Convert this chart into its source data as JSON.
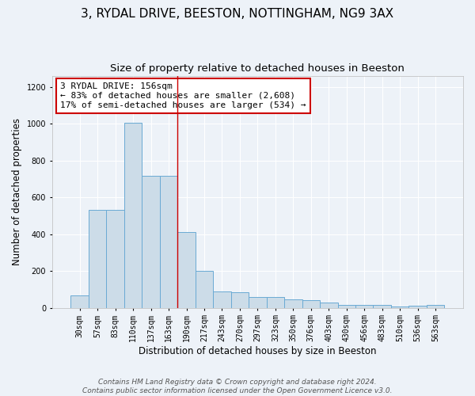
{
  "title": "3, RYDAL DRIVE, BEESTON, NOTTINGHAM, NG9 3AX",
  "subtitle": "Size of property relative to detached houses in Beeston",
  "xlabel": "Distribution of detached houses by size in Beeston",
  "ylabel": "Number of detached properties",
  "categories": [
    "30sqm",
    "57sqm",
    "83sqm",
    "110sqm",
    "137sqm",
    "163sqm",
    "190sqm",
    "217sqm",
    "243sqm",
    "270sqm",
    "297sqm",
    "323sqm",
    "350sqm",
    "376sqm",
    "403sqm",
    "430sqm",
    "456sqm",
    "483sqm",
    "510sqm",
    "536sqm",
    "563sqm"
  ],
  "values": [
    65,
    530,
    530,
    1005,
    715,
    715,
    410,
    200,
    90,
    85,
    60,
    60,
    45,
    40,
    30,
    15,
    15,
    15,
    5,
    10,
    15
  ],
  "bar_color": "#ccdce8",
  "bar_edge_color": "#6aaad4",
  "background_color": "#edf2f8",
  "grid_color": "#ffffff",
  "annotation_text": "3 RYDAL DRIVE: 156sqm\n← 83% of detached houses are smaller (2,608)\n17% of semi-detached houses are larger (534) →",
  "annotation_box_color": "#ffffff",
  "annotation_box_edge_color": "#cc0000",
  "vline_x": 5.5,
  "vline_color": "#cc0000",
  "ylim": [
    0,
    1260
  ],
  "yticks": [
    0,
    200,
    400,
    600,
    800,
    1000,
    1200
  ],
  "footer": "Contains HM Land Registry data © Crown copyright and database right 2024.\nContains public sector information licensed under the Open Government Licence v3.0.",
  "title_fontsize": 11,
  "subtitle_fontsize": 9.5,
  "xlabel_fontsize": 8.5,
  "ylabel_fontsize": 8.5,
  "tick_fontsize": 7,
  "annotation_fontsize": 8,
  "footer_fontsize": 6.5
}
